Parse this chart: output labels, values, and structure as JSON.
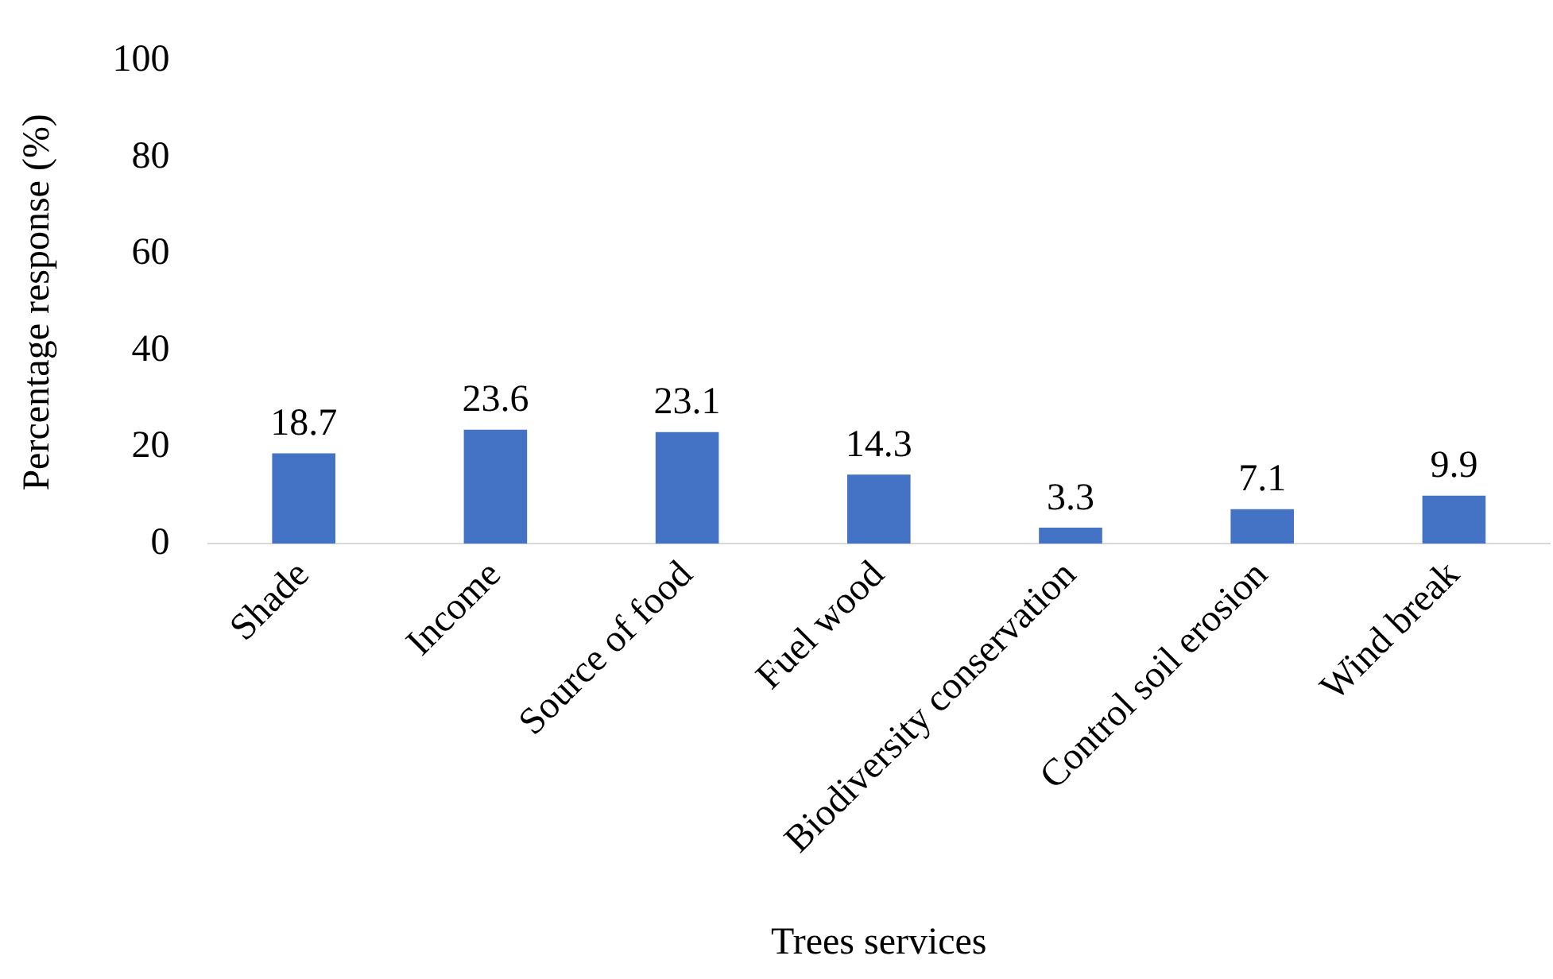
{
  "chart_data": {
    "type": "bar",
    "xlabel": "Trees services",
    "ylabel": "Percentage response (%)",
    "categories": [
      "Shade",
      "Income",
      "Source of food",
      "Fuel wood",
      "Biodiversity conservation",
      "Control soil erosion",
      "Wind break"
    ],
    "values": [
      18.7,
      23.6,
      23.1,
      14.3,
      3.3,
      7.1,
      9.9
    ],
    "color": "#4472c4",
    "ylim": [
      0,
      100
    ],
    "yticks": [
      0,
      20,
      40,
      60,
      80,
      100
    ],
    "grid": false,
    "data_labels": true
  }
}
